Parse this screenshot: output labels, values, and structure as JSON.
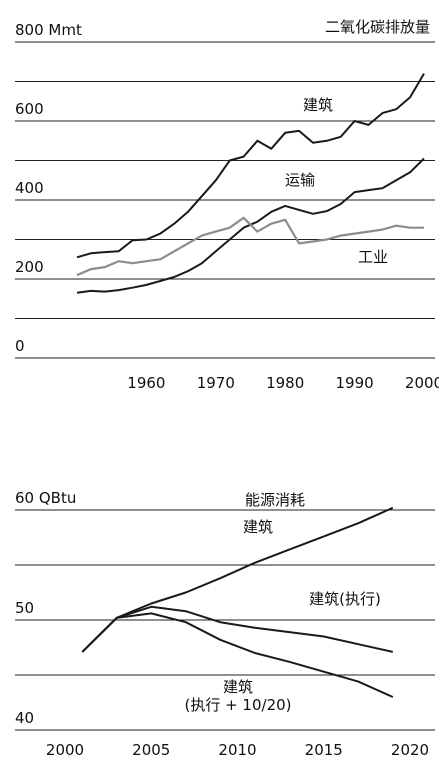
{
  "chart_data": [
    {
      "type": "line",
      "title": "二氧化碳排放量",
      "x": [
        1950,
        1952,
        1954,
        1956,
        1958,
        1960,
        1962,
        1964,
        1966,
        1968,
        1970,
        1972,
        1974,
        1976,
        1978,
        1980,
        1982,
        1984,
        1986,
        1988,
        1990,
        1992,
        1994,
        1996,
        1998,
        2000
      ],
      "series": [
        {
          "name": "建筑",
          "color": "#1a1a1a",
          "values": [
            255,
            265,
            268,
            270,
            298,
            300,
            315,
            340,
            370,
            410,
            450,
            500,
            510,
            550,
            530,
            570,
            575,
            545,
            550,
            560,
            600,
            590,
            620,
            630,
            660,
            720
          ]
        },
        {
          "name": "运输",
          "color": "#1a1a1a",
          "values": [
            165,
            170,
            168,
            172,
            178,
            185,
            195,
            205,
            220,
            240,
            270,
            300,
            330,
            345,
            370,
            385,
            375,
            365,
            372,
            390,
            420,
            425,
            430,
            450,
            470,
            505
          ]
        },
        {
          "name": "工业",
          "color": "#8c8c8c",
          "values": [
            210,
            225,
            230,
            245,
            240,
            245,
            250,
            270,
            290,
            310,
            320,
            330,
            355,
            320,
            340,
            350,
            290,
            295,
            300,
            310,
            315,
            320,
            325,
            335,
            330,
            330
          ]
        }
      ],
      "xlim": [
        1950,
        2000
      ],
      "xticks": [
        1960,
        1970,
        1980,
        1990,
        2000
      ],
      "ylim": [
        0,
        800
      ],
      "yticks": [
        0,
        200,
        400,
        600,
        {
          "value": 800,
          "label": "800 Mmt"
        }
      ],
      "minor_yticks": [
        100,
        300,
        500,
        700
      ],
      "grid": true
    },
    {
      "type": "line",
      "title": "能源消耗",
      "x": [
        2001,
        2003,
        2005,
        2007,
        2009,
        2011,
        2013,
        2015,
        2017,
        2019
      ],
      "series": [
        {
          "name": "建筑",
          "color": "#1a1a1a",
          "values": [
            47.1,
            50.2,
            51.5,
            52.5,
            53.8,
            55.2,
            56.4,
            57.6,
            58.8,
            60.2
          ]
        },
        {
          "name": "建筑(执行)",
          "color": "#1a1a1a",
          "values": [
            47.1,
            50.2,
            51.2,
            50.8,
            49.8,
            49.3,
            48.9,
            48.5,
            47.8,
            47.1
          ]
        },
        {
          "name": "建筑(执行 + 10/20)",
          "color": "#1a1a1a",
          "values": [
            47.1,
            50.2,
            50.6,
            49.8,
            48.2,
            47.0,
            46.2,
            45.3,
            44.4,
            43.0
          ]
        }
      ],
      "xlim": [
        2000,
        2020
      ],
      "xticks": [
        2000,
        2005,
        2010,
        2015,
        2020
      ],
      "ylim": [
        40,
        60
      ],
      "yticks": [
        40,
        50,
        {
          "value": 60,
          "label": "60 QBtu"
        }
      ],
      "minor_yticks": [
        45,
        55
      ],
      "grid": true
    }
  ]
}
